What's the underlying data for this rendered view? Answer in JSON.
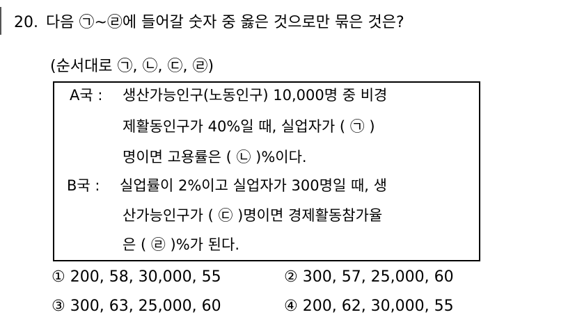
{
  "question": {
    "number": "20.",
    "stem": "다음 ㉠~㉣에 들어갈 숫자 중 옳은 것으로만 묶은 것은?",
    "note": "(순서대로 ㉠, ㉡, ㉢, ㉣)"
  },
  "box": {
    "a_label": "A국 :",
    "a_lines": [
      "생산가능인구(노동인구) 10,000명 중 비경",
      "제활동인구가 40%일 때, 실업자가 ( ㉠ )",
      "명이면 고용률은 ( ㉡ )%이다."
    ],
    "b_label": "B국 :",
    "b_lines": [
      "실업률이 2%이고 실업자가 300명일 때, 생",
      "산가능인구가 ( ㉢ )명이면 경제활동참가율",
      "은 ( ㉣ )%가 된다."
    ]
  },
  "options": [
    "① 200, 58, 30,000, 55",
    "② 300, 57, 25,000, 60",
    "③ 300, 63, 25,000, 60",
    "④ 200, 62, 30,000, 55"
  ]
}
